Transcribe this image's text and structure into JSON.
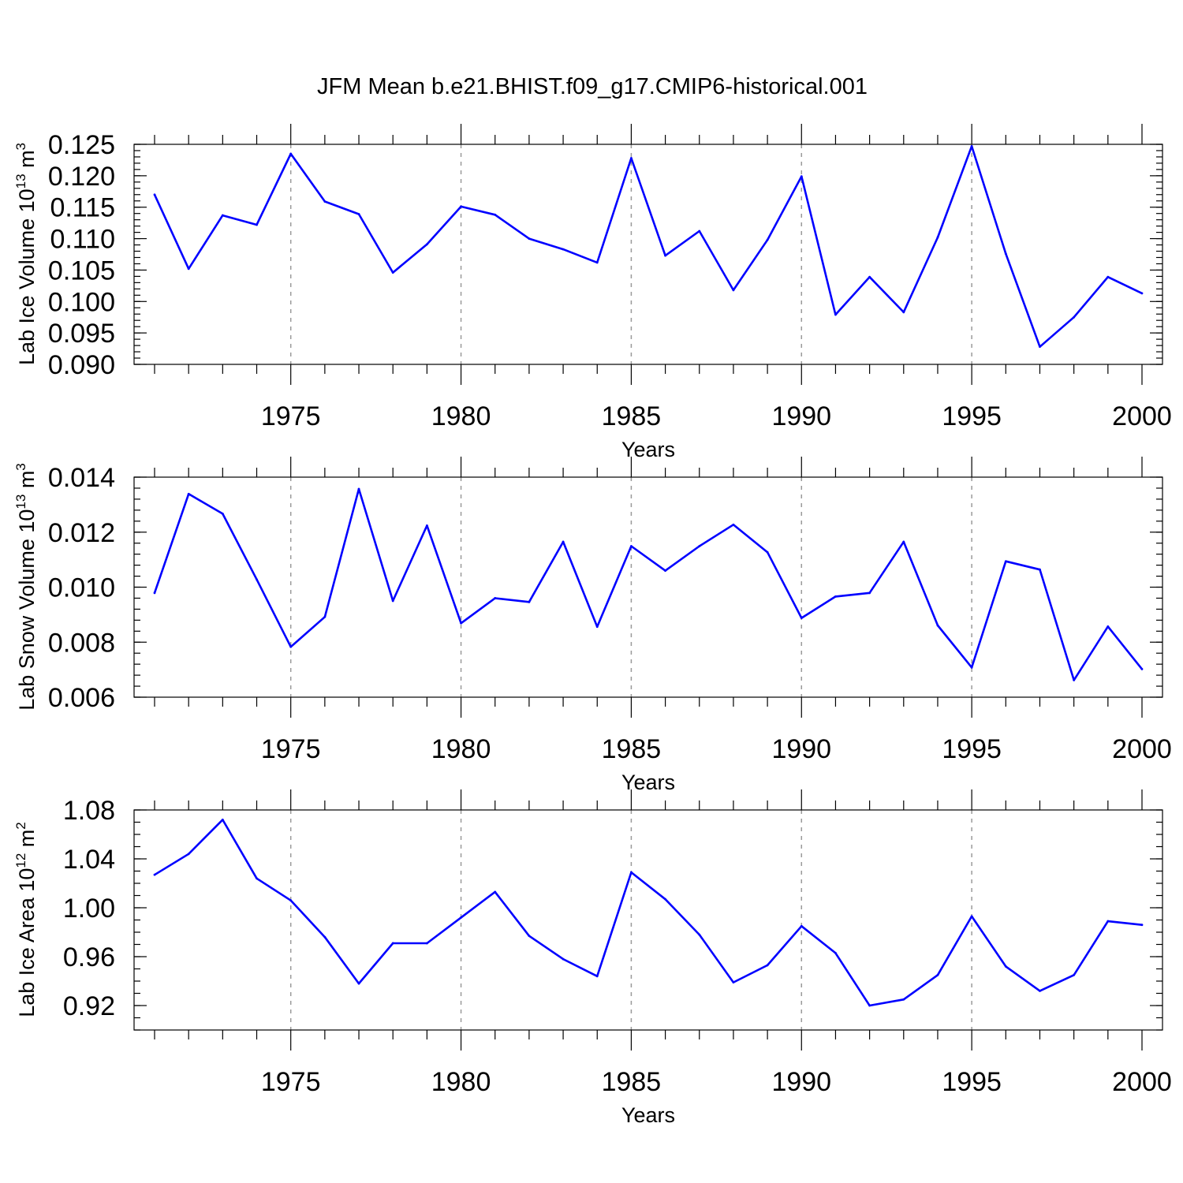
{
  "figure": {
    "title": "JFM Mean b.e21.BHIST.f09_g17.CMIP6-historical.001"
  },
  "series_color": "#0000ff",
  "chart_data": [
    {
      "type": "line",
      "ylabel_main": "Lab Ice Volume 10",
      "ylabel_exp": "13",
      "ylabel_unit": " m",
      "ylabel_unit_exp": "3",
      "xlabel": "Years",
      "xlim": [
        1971,
        2000
      ],
      "ylim": [
        0.09,
        0.125
      ],
      "grid_x": [
        1975,
        1980,
        1985,
        1990,
        1995
      ],
      "y_major_ticks": [
        0.09,
        0.095,
        0.1,
        0.105,
        0.11,
        0.115,
        0.12,
        0.125
      ],
      "y_tick_labels": [
        "0.090",
        "0.095",
        "0.100",
        "0.105",
        "0.110",
        "0.115",
        "0.120",
        "0.125"
      ],
      "y_minor_step": 0.001,
      "x_major_ticks": [
        1975,
        1980,
        1985,
        1990,
        1995,
        2000
      ],
      "x_tick_labels": [
        "1975",
        "1980",
        "1985",
        "1990",
        "1995",
        "2000"
      ],
      "x": [
        1971,
        1972,
        1973,
        1974,
        1975,
        1976,
        1977,
        1978,
        1979,
        1980,
        1981,
        1982,
        1983,
        1984,
        1985,
        1986,
        1987,
        1988,
        1989,
        1990,
        1991,
        1992,
        1993,
        1994,
        1995,
        1996,
        1997,
        1998,
        1999,
        2000
      ],
      "y": [
        0.117,
        0.1052,
        0.1137,
        0.1122,
        0.1235,
        0.1159,
        0.1139,
        0.1046,
        0.1091,
        0.1151,
        0.1138,
        0.11,
        0.1083,
        0.1062,
        0.1228,
        0.1073,
        0.1112,
        0.1018,
        0.1098,
        0.1199,
        0.0979,
        0.1039,
        0.0983,
        0.1102,
        0.1247,
        0.1076,
        0.0928,
        0.0975,
        0.1039,
        0.1013
      ]
    },
    {
      "type": "line",
      "ylabel_main": "Lab Snow Volume 10",
      "ylabel_exp": "13",
      "ylabel_unit": " m",
      "ylabel_unit_exp": "3",
      "xlabel": "Years",
      "xlim": [
        1971,
        2000
      ],
      "ylim": [
        0.006,
        0.014
      ],
      "grid_x": [
        1975,
        1980,
        1985,
        1990,
        1995
      ],
      "y_major_ticks": [
        0.006,
        0.008,
        0.01,
        0.012,
        0.014
      ],
      "y_tick_labels": [
        "0.006",
        "0.008",
        "0.010",
        "0.012",
        "0.014"
      ],
      "y_minor_step": 0.0004,
      "x_major_ticks": [
        1975,
        1980,
        1985,
        1990,
        1995,
        2000
      ],
      "x_tick_labels": [
        "1975",
        "1980",
        "1985",
        "1990",
        "1995",
        "2000"
      ],
      "x": [
        1971,
        1972,
        1973,
        1974,
        1975,
        1976,
        1977,
        1978,
        1979,
        1980,
        1981,
        1982,
        1983,
        1984,
        1985,
        1986,
        1987,
        1988,
        1989,
        1990,
        1991,
        1992,
        1993,
        1994,
        1995,
        1996,
        1997,
        1998,
        1999,
        2000
      ],
      "y": [
        0.00979,
        0.01339,
        0.01267,
        0.01028,
        0.00783,
        0.00892,
        0.01357,
        0.0095,
        0.01224,
        0.00869,
        0.0096,
        0.00946,
        0.01165,
        0.00856,
        0.01149,
        0.0106,
        0.01149,
        0.01227,
        0.01127,
        0.00888,
        0.00966,
        0.00979,
        0.01165,
        0.00861,
        0.00708,
        0.01094,
        0.01064,
        0.00662,
        0.00857,
        0.00702
      ]
    },
    {
      "type": "line",
      "ylabel_main": "Lab Ice Area 10",
      "ylabel_exp": "12",
      "ylabel_unit": " m",
      "ylabel_unit_exp": "2",
      "xlabel": "Years",
      "xlim": [
        1971,
        2000
      ],
      "ylim": [
        0.9,
        1.08
      ],
      "grid_x": [
        1975,
        1980,
        1985,
        1990,
        1995
      ],
      "y_major_ticks": [
        0.92,
        0.96,
        1.0,
        1.04,
        1.08
      ],
      "y_tick_labels": [
        "0.92",
        "0.96",
        "1.00",
        "1.04",
        "1.08"
      ],
      "y_minor_step": 0.01,
      "x_major_ticks": [
        1975,
        1980,
        1985,
        1990,
        1995,
        2000
      ],
      "x_tick_labels": [
        "1975",
        "1980",
        "1985",
        "1990",
        "1995",
        "2000"
      ],
      "x": [
        1971,
        1972,
        1973,
        1974,
        1975,
        1976,
        1977,
        1978,
        1979,
        1980,
        1981,
        1982,
        1983,
        1984,
        1985,
        1986,
        1987,
        1988,
        1989,
        1990,
        1991,
        1992,
        1993,
        1994,
        1995,
        1996,
        1997,
        1998,
        1999,
        2000
      ],
      "y": [
        1.027,
        1.044,
        1.072,
        1.024,
        1.006,
        0.976,
        0.938,
        0.971,
        0.971,
        0.992,
        1.013,
        0.977,
        0.958,
        0.944,
        1.029,
        1.007,
        0.978,
        0.939,
        0.953,
        0.985,
        0.963,
        0.92,
        0.925,
        0.945,
        0.993,
        0.952,
        0.932,
        0.945,
        0.989,
        0.986
      ]
    }
  ]
}
